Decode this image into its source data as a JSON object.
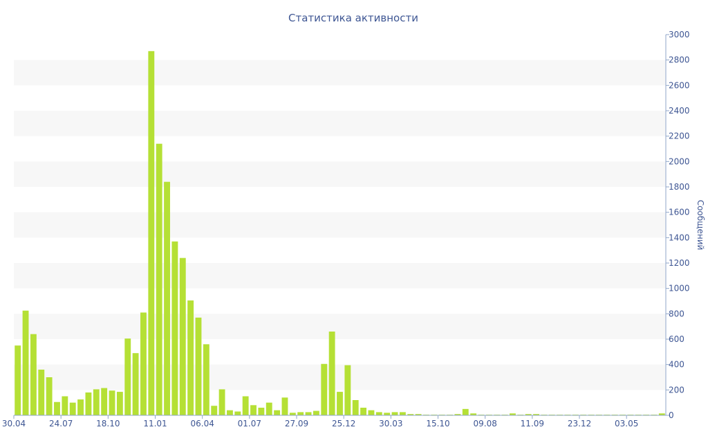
{
  "chart_data": {
    "type": "bar",
    "title": "Статистика активности",
    "ylabel": "Сообщений",
    "xlabel": "",
    "ylim": [
      0,
      3000
    ],
    "y_ticks": [
      0,
      200,
      400,
      600,
      800,
      1000,
      1200,
      1400,
      1600,
      1800,
      2000,
      2200,
      2400,
      2600,
      2800,
      3000
    ],
    "x_tick_labels": [
      {
        "label": "30.04",
        "index": 0
      },
      {
        "label": "24.07",
        "index": 6
      },
      {
        "label": "18.10",
        "index": 12
      },
      {
        "label": "11.01",
        "index": 18
      },
      {
        "label": "06.04",
        "index": 24
      },
      {
        "label": "01.07",
        "index": 30
      },
      {
        "label": "27.09",
        "index": 36
      },
      {
        "label": "25.12",
        "index": 42
      },
      {
        "label": "30.03",
        "index": 48
      },
      {
        "label": "15.10",
        "index": 54
      },
      {
        "label": "09.08",
        "index": 60
      },
      {
        "label": "11.09",
        "index": 66
      },
      {
        "label": "23.12",
        "index": 72
      },
      {
        "label": "03.05",
        "index": 78
      }
    ],
    "values": [
      550,
      825,
      640,
      360,
      300,
      105,
      150,
      100,
      125,
      180,
      205,
      215,
      195,
      185,
      605,
      490,
      810,
      2870,
      2140,
      1840,
      1370,
      1240,
      905,
      770,
      560,
      75,
      205,
      40,
      30,
      150,
      80,
      60,
      100,
      40,
      140,
      20,
      25,
      25,
      35,
      405,
      660,
      185,
      395,
      120,
      60,
      40,
      25,
      20,
      25,
      25,
      10,
      10,
      5,
      5,
      5,
      5,
      10,
      50,
      15,
      5,
      5,
      5,
      5,
      15,
      5,
      10,
      10,
      5,
      5,
      5,
      5,
      5,
      5,
      5,
      5,
      5,
      5,
      5,
      5,
      5,
      5,
      5,
      15
    ],
    "grid": "horizontal bands",
    "y_axis_position": "right",
    "colors": {
      "bar": "#b5e035",
      "band": "#f7f7f7",
      "text": "#3e5693",
      "axis": "#8fa6c9"
    }
  }
}
